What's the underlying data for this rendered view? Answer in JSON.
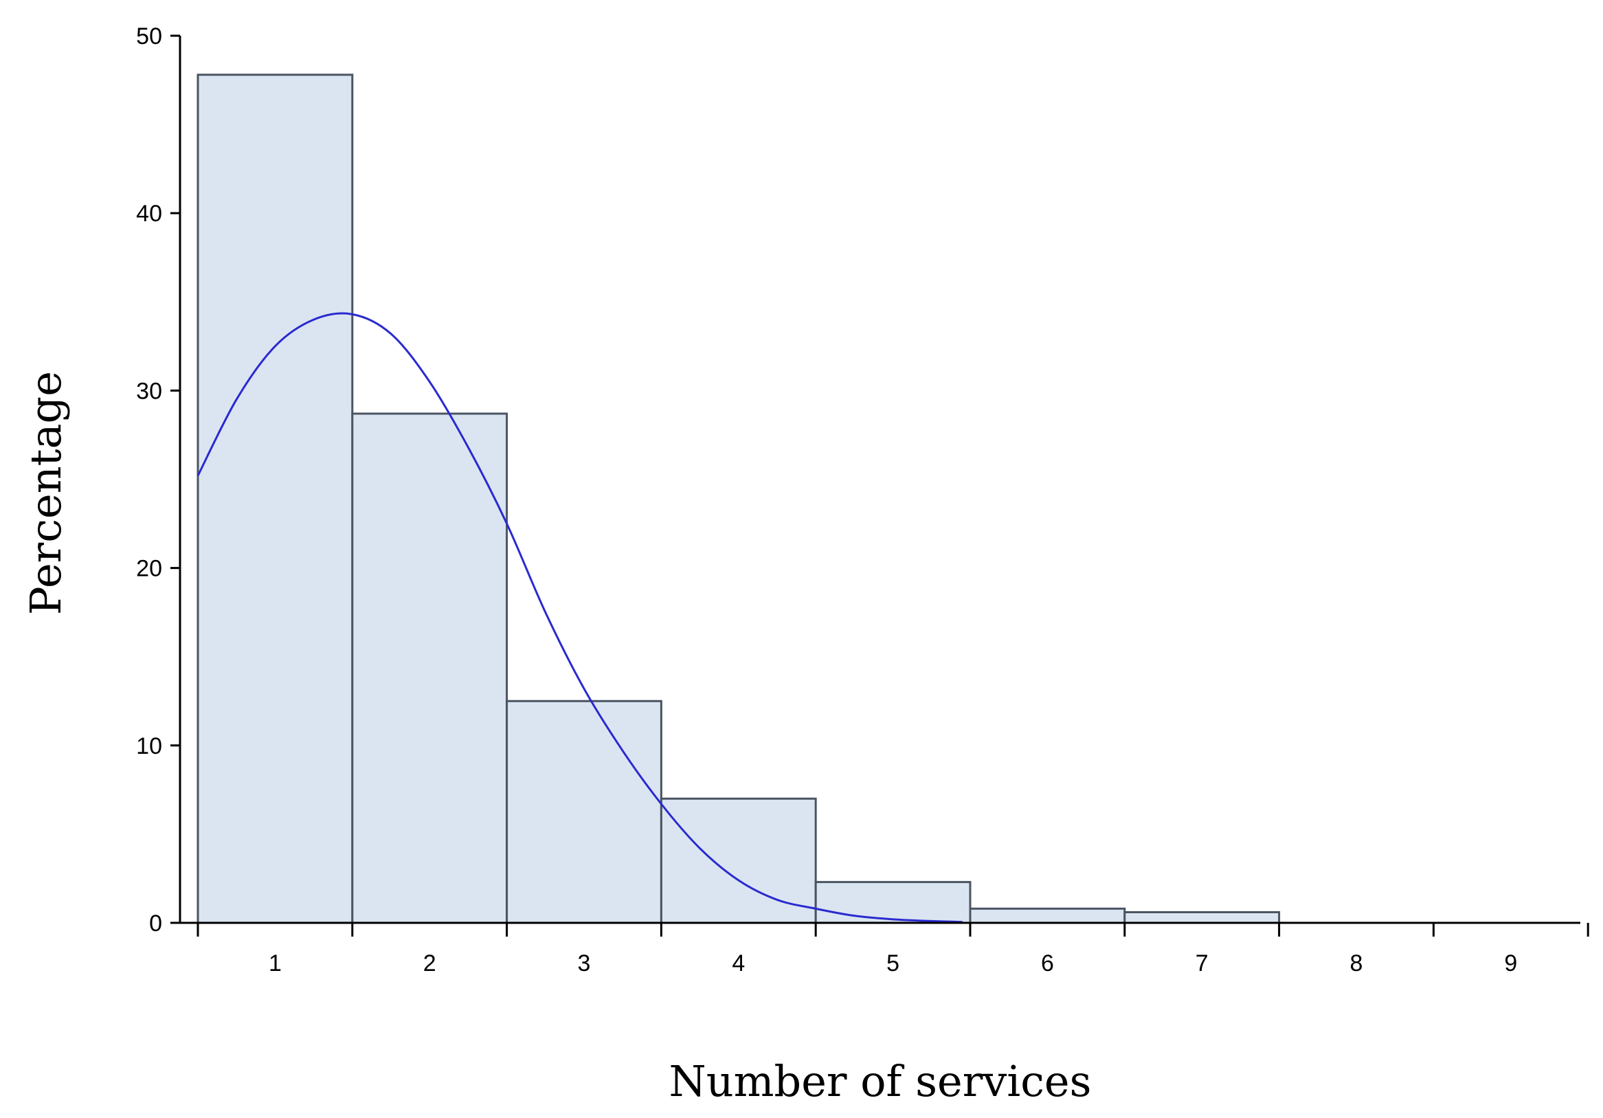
{
  "chart_data": {
    "type": "bar",
    "title": "",
    "xlabel": "Number of services",
    "ylabel": "Percentage",
    "categories": [
      "1",
      "2",
      "3",
      "4",
      "5",
      "6",
      "7",
      "8",
      "9"
    ],
    "values": [
      47.8,
      28.7,
      12.5,
      7.0,
      2.3,
      0.8,
      0.6,
      0,
      0
    ],
    "ylim": [
      0,
      50
    ],
    "yticks": [
      "0",
      "10",
      "20",
      "30",
      "40",
      "50"
    ],
    "grid": false,
    "density_curve": {
      "x": [
        0.5,
        0.75,
        1.0,
        1.25,
        1.5,
        1.75,
        2.0,
        2.25,
        2.5,
        2.75,
        3.0,
        3.25,
        3.5,
        3.75,
        4.0,
        4.25,
        4.5,
        4.75,
        5.0,
        5.25,
        5.45
      ],
      "y": [
        25.2,
        29.5,
        32.5,
        34.0,
        34.3,
        33.2,
        30.5,
        26.8,
        22.5,
        17.5,
        13.2,
        9.7,
        6.7,
        4.2,
        2.4,
        1.3,
        0.8,
        0.4,
        0.2,
        0.1,
        0.05
      ],
      "color": "#2a2ad0"
    },
    "colors": {
      "bar_fill": "#dbe5f1",
      "bar_stroke": "#4a5563"
    }
  }
}
